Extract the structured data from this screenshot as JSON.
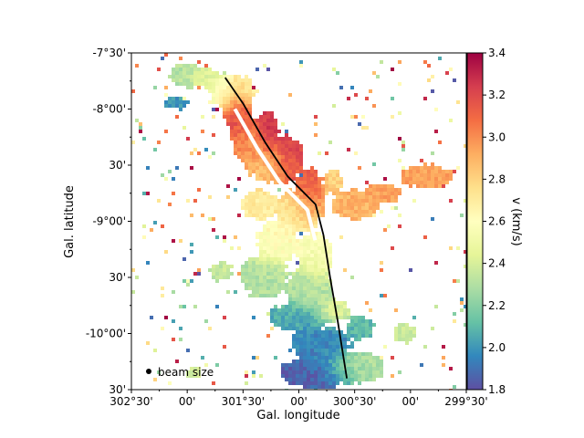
{
  "chart_data": {
    "type": "heatmap",
    "xlabel": "Gal. longitude",
    "ylabel": "Gal. latitude",
    "colorbar_label": "v (km/s)",
    "colormap": "Spectral_r",
    "colorbar_ticks": [
      1.8,
      2.0,
      2.2,
      2.4,
      2.6,
      2.8,
      3.0,
      3.2,
      3.4
    ],
    "colorbar_tick_labels": [
      "1.8",
      "2.0",
      "2.2",
      "2.4",
      "2.6",
      "2.8",
      "3.0",
      "3.2",
      "3.4"
    ],
    "vlim": [
      1.8,
      3.4
    ],
    "x_ticks_deg": [
      302.5,
      302.25,
      302.0,
      301.75,
      301.5,
      301.25,
      301.0,
      300.75,
      300.5,
      300.25,
      300.0,
      299.75,
      299.5
    ],
    "x_tick_labels": [
      "302°30'",
      "",
      "00'",
      "",
      "301°30'",
      "",
      "00'",
      "",
      "300°30'",
      "",
      "00'",
      "",
      "299°30'"
    ],
    "y_ticks_deg": [
      -7.5,
      -7.75,
      -8.0,
      -8.25,
      -8.5,
      -8.75,
      -9.0,
      -9.25,
      -9.5,
      -9.75,
      -10.0,
      -10.25,
      -10.5
    ],
    "y_tick_labels": [
      "-7°30'",
      "",
      "-8°00'",
      "",
      "30'",
      "",
      "-9°00'",
      "",
      "30'",
      "",
      "-10°00'",
      "",
      "30'"
    ],
    "xlim": [
      302.5,
      299.5
    ],
    "ylim": [
      -10.5,
      -7.5
    ],
    "beam_label": "beam size",
    "filament_spine": [
      {
        "lon": 301.66,
        "lat": -7.72
      },
      {
        "lon": 301.5,
        "lat": -7.95
      },
      {
        "lon": 301.3,
        "lat": -8.3
      },
      {
        "lon": 301.1,
        "lat": -8.6
      },
      {
        "lon": 300.85,
        "lat": -8.85
      },
      {
        "lon": 300.78,
        "lat": -9.12
      },
      {
        "lon": 300.72,
        "lat": -9.5
      },
      {
        "lon": 300.65,
        "lat": -9.9
      },
      {
        "lon": 300.57,
        "lat": -10.4
      }
    ],
    "regions": [
      {
        "lon": 301.55,
        "lat": -8.0,
        "rx": 0.12,
        "ry": 0.22,
        "v": 3.2
      },
      {
        "lon": 301.28,
        "lat": -8.2,
        "rx": 0.1,
        "ry": 0.18,
        "v": 3.3
      },
      {
        "lon": 301.1,
        "lat": -8.45,
        "rx": 0.13,
        "ry": 0.2,
        "v": 3.25
      },
      {
        "lon": 300.9,
        "lat": -8.75,
        "rx": 0.12,
        "ry": 0.2,
        "v": 3.15
      },
      {
        "lon": 301.4,
        "lat": -8.3,
        "rx": 0.18,
        "ry": 0.2,
        "v": 3.0
      },
      {
        "lon": 301.25,
        "lat": -8.5,
        "rx": 0.2,
        "ry": 0.15,
        "v": 2.85
      },
      {
        "lon": 301.6,
        "lat": -7.85,
        "rx": 0.2,
        "ry": 0.15,
        "v": 2.55
      },
      {
        "lon": 301.85,
        "lat": -7.72,
        "rx": 0.15,
        "ry": 0.08,
        "v": 2.45
      },
      {
        "lon": 301.0,
        "lat": -8.9,
        "rx": 0.2,
        "ry": 0.18,
        "v": 2.75
      },
      {
        "lon": 300.5,
        "lat": -8.85,
        "rx": 0.22,
        "ry": 0.12,
        "v": 2.9
      },
      {
        "lon": 300.25,
        "lat": -8.75,
        "rx": 0.15,
        "ry": 0.08,
        "v": 2.95
      },
      {
        "lon": 299.85,
        "lat": -8.6,
        "rx": 0.22,
        "ry": 0.1,
        "v": 2.95
      },
      {
        "lon": 300.7,
        "lat": -8.65,
        "rx": 0.08,
        "ry": 0.1,
        "v": 2.8
      },
      {
        "lon": 301.35,
        "lat": -8.85,
        "rx": 0.15,
        "ry": 0.12,
        "v": 2.7
      },
      {
        "lon": 301.2,
        "lat": -9.2,
        "rx": 0.18,
        "ry": 0.18,
        "v": 2.6
      },
      {
        "lon": 300.85,
        "lat": -9.3,
        "rx": 0.15,
        "ry": 0.2,
        "v": 2.55
      },
      {
        "lon": 301.3,
        "lat": -9.5,
        "rx": 0.2,
        "ry": 0.18,
        "v": 2.3
      },
      {
        "lon": 300.9,
        "lat": -9.6,
        "rx": 0.18,
        "ry": 0.18,
        "v": 2.3
      },
      {
        "lon": 301.0,
        "lat": -9.85,
        "rx": 0.25,
        "ry": 0.12,
        "v": 2.05
      },
      {
        "lon": 300.7,
        "lat": -9.8,
        "rx": 0.15,
        "ry": 0.1,
        "v": 2.45
      },
      {
        "lon": 300.8,
        "lat": -10.1,
        "rx": 0.25,
        "ry": 0.15,
        "v": 1.95
      },
      {
        "lon": 300.85,
        "lat": -10.35,
        "rx": 0.3,
        "ry": 0.13,
        "v": 1.85
      },
      {
        "lon": 300.5,
        "lat": -10.3,
        "rx": 0.25,
        "ry": 0.13,
        "v": 2.3
      },
      {
        "lon": 300.45,
        "lat": -9.95,
        "rx": 0.12,
        "ry": 0.1,
        "v": 2.1
      },
      {
        "lon": 302.0,
        "lat": -7.7,
        "rx": 0.15,
        "ry": 0.1,
        "v": 2.3
      },
      {
        "lon": 302.1,
        "lat": -7.95,
        "rx": 0.1,
        "ry": 0.05,
        "v": 2.0
      },
      {
        "lon": 301.7,
        "lat": -9.45,
        "rx": 0.1,
        "ry": 0.08,
        "v": 2.35
      },
      {
        "lon": 300.05,
        "lat": -10.0,
        "rx": 0.1,
        "ry": 0.08,
        "v": 2.35
      },
      {
        "lon": 301.95,
        "lat": -10.35,
        "rx": 0.06,
        "ry": 0.05,
        "v": 2.4
      }
    ]
  }
}
